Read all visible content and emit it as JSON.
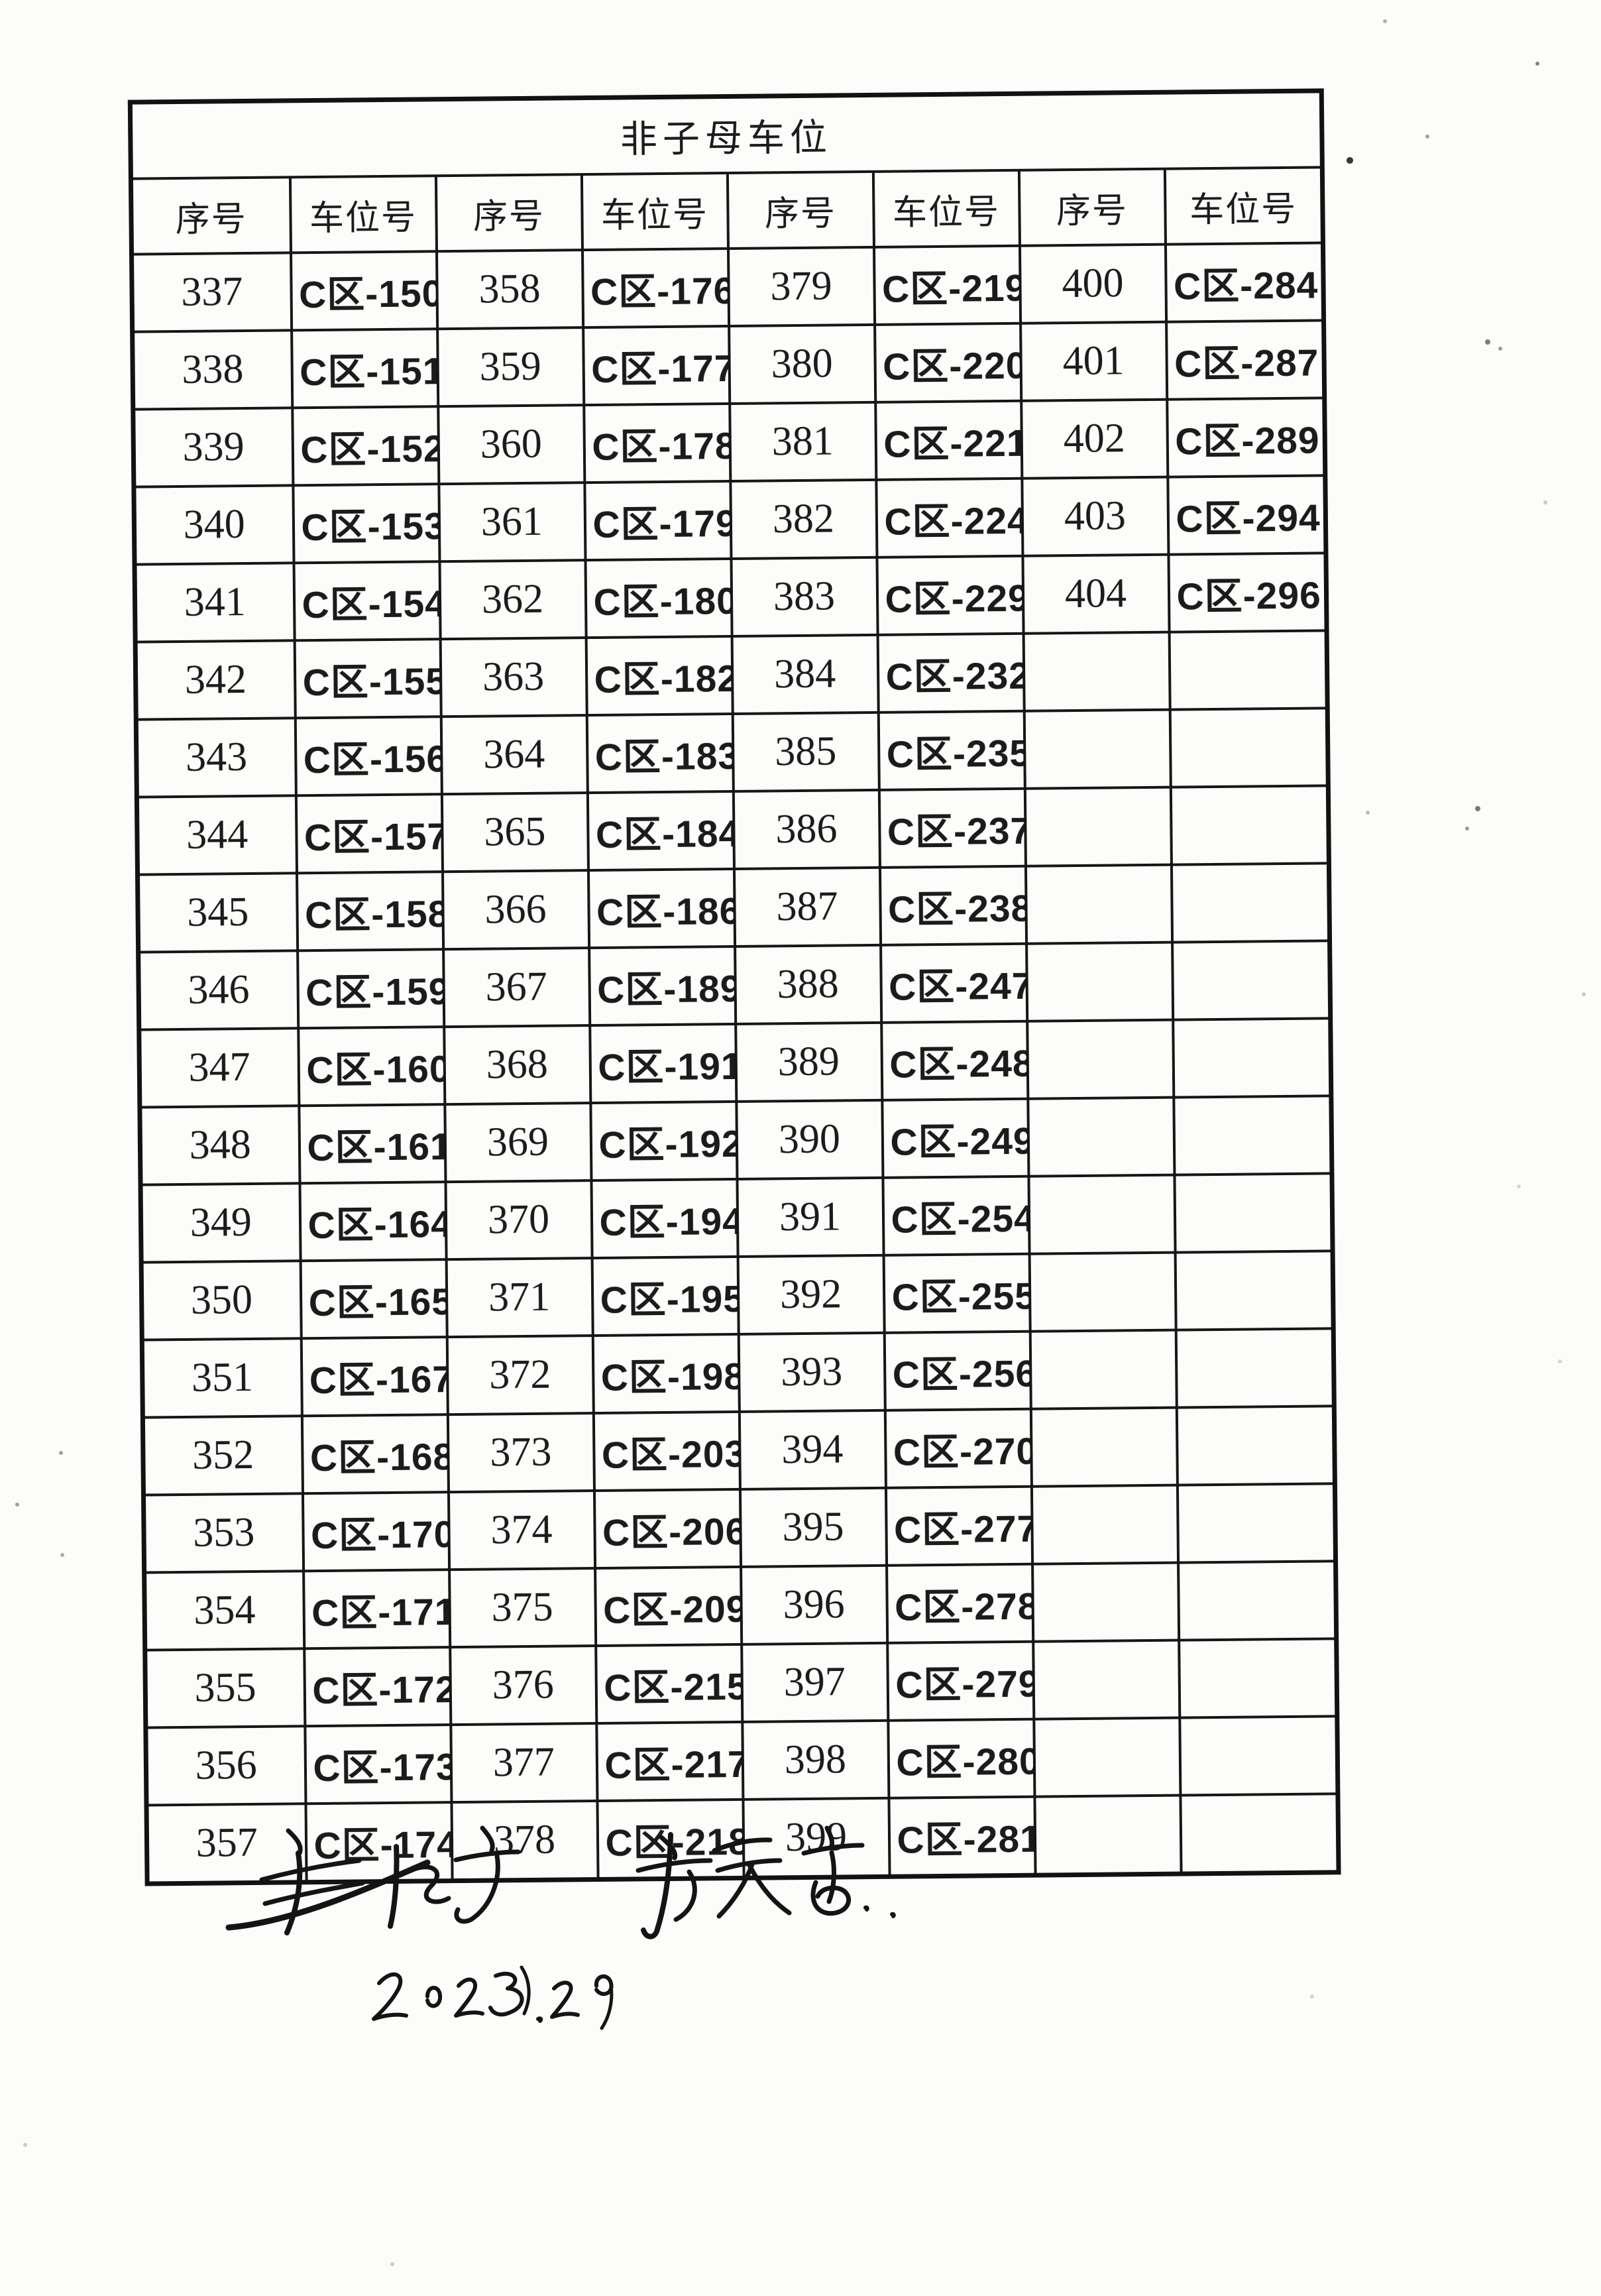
{
  "document": {
    "title": "非子母车位",
    "header_labels": [
      "序号",
      "车位号",
      "序号",
      "车位号",
      "序号",
      "车位号",
      "序号",
      "车位号"
    ],
    "rows": [
      [
        "337",
        "C区-150",
        "358",
        "C区-176",
        "379",
        "C区-219",
        "400",
        "C区-284"
      ],
      [
        "338",
        "C区-151",
        "359",
        "C区-177",
        "380",
        "C区-220",
        "401",
        "C区-287"
      ],
      [
        "339",
        "C区-152",
        "360",
        "C区-178",
        "381",
        "C区-221",
        "402",
        "C区-289"
      ],
      [
        "340",
        "C区-153",
        "361",
        "C区-179",
        "382",
        "C区-224",
        "403",
        "C区-294"
      ],
      [
        "341",
        "C区-154",
        "362",
        "C区-180",
        "383",
        "C区-229",
        "404",
        "C区-296"
      ],
      [
        "342",
        "C区-155",
        "363",
        "C区-182",
        "384",
        "C区-232",
        "",
        ""
      ],
      [
        "343",
        "C区-156",
        "364",
        "C区-183",
        "385",
        "C区-235",
        "",
        ""
      ],
      [
        "344",
        "C区-157",
        "365",
        "C区-184",
        "386",
        "C区-237",
        "",
        ""
      ],
      [
        "345",
        "C区-158",
        "366",
        "C区-186",
        "387",
        "C区-238",
        "",
        ""
      ],
      [
        "346",
        "C区-159",
        "367",
        "C区-189",
        "388",
        "C区-247",
        "",
        ""
      ],
      [
        "347",
        "C区-160",
        "368",
        "C区-191",
        "389",
        "C区-248",
        "",
        ""
      ],
      [
        "348",
        "C区-161",
        "369",
        "C区-192",
        "390",
        "C区-249",
        "",
        ""
      ],
      [
        "349",
        "C区-164",
        "370",
        "C区-194",
        "391",
        "C区-254",
        "",
        ""
      ],
      [
        "350",
        "C区-165",
        "371",
        "C区-195",
        "392",
        "C区-255",
        "",
        ""
      ],
      [
        "351",
        "C区-167",
        "372",
        "C区-198",
        "393",
        "C区-256",
        "",
        ""
      ],
      [
        "352",
        "C区-168",
        "373",
        "C区-203",
        "394",
        "C区-270",
        "",
        ""
      ],
      [
        "353",
        "C区-170",
        "374",
        "C区-206",
        "395",
        "C区-277",
        "",
        ""
      ],
      [
        "354",
        "C区-171",
        "375",
        "C区-209",
        "396",
        "C区-278",
        "",
        ""
      ],
      [
        "355",
        "C区-172",
        "376",
        "C区-215",
        "397",
        "C区-279",
        "",
        ""
      ],
      [
        "356",
        "C区-173",
        "377",
        "C区-217",
        "398",
        "C区-280",
        "",
        ""
      ],
      [
        "357",
        "C区-174",
        "378",
        "C区-218",
        "399",
        "C区-281",
        "",
        ""
      ]
    ],
    "handwriting": {
      "signature_left_transcription": "朱仲修宇",
      "signature_right_transcription": "李天高",
      "date_transcription": "2023.9.29"
    },
    "ink_color": "#161616",
    "paper_color": "#fcfcfa"
  }
}
